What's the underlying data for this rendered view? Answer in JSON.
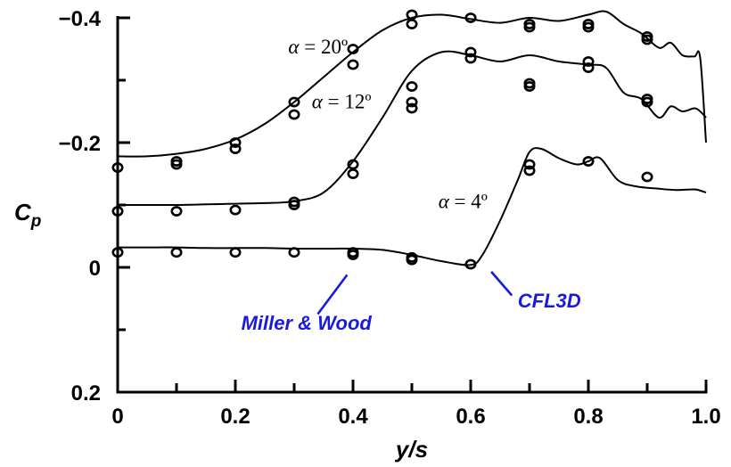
{
  "chart_data": {
    "type": "line",
    "title": "",
    "xlabel": "y/s",
    "ylabel_main": "C",
    "ylabel_sub": "p",
    "xlim": [
      0,
      1.0
    ],
    "ylim": [
      0.2,
      -0.4
    ],
    "y_inverted": true,
    "grid": false,
    "x_ticks": [
      0,
      0.1,
      0.2,
      0.3,
      0.4,
      0.5,
      0.6,
      0.7,
      0.8,
      0.9,
      1.0
    ],
    "x_tick_labels": [
      "0",
      "",
      "0.2",
      "",
      "0.4",
      "",
      "0.6",
      "",
      "0.8",
      "",
      "1.0"
    ],
    "y_ticks": [
      0.2,
      0.1,
      0.0,
      -0.1,
      -0.2,
      -0.3,
      -0.4
    ],
    "y_tick_labels": [
      "0.2",
      "",
      "0",
      "",
      "−0.2",
      "",
      "−0.4"
    ],
    "series": [
      {
        "label_greek": "α",
        "label_text": " = 20º",
        "label_at": [
          0.29,
          -0.343
        ],
        "computed": [
          [
            0,
            -0.178
          ],
          [
            0.05,
            -0.178
          ],
          [
            0.1,
            -0.182
          ],
          [
            0.15,
            -0.19
          ],
          [
            0.2,
            -0.205
          ],
          [
            0.25,
            -0.23
          ],
          [
            0.3,
            -0.265
          ],
          [
            0.35,
            -0.305
          ],
          [
            0.4,
            -0.345
          ],
          [
            0.45,
            -0.38
          ],
          [
            0.5,
            -0.4
          ],
          [
            0.55,
            -0.405
          ],
          [
            0.6,
            -0.398
          ],
          [
            0.65,
            -0.392
          ],
          [
            0.7,
            -0.4
          ],
          [
            0.75,
            -0.395
          ],
          [
            0.8,
            -0.405
          ],
          [
            0.83,
            -0.41
          ],
          [
            0.86,
            -0.39
          ],
          [
            0.89,
            -0.375
          ],
          [
            0.92,
            -0.352
          ],
          [
            0.94,
            -0.36
          ],
          [
            0.96,
            -0.34
          ],
          [
            0.98,
            -0.338
          ],
          [
            0.99,
            -0.336
          ],
          [
            1.0,
            -0.2
          ]
        ],
        "experiment": [
          [
            0,
            -0.16
          ],
          [
            0.1,
            -0.17
          ],
          [
            0.1,
            -0.165
          ],
          [
            0.2,
            -0.2
          ],
          [
            0.2,
            -0.19
          ],
          [
            0.3,
            -0.265
          ],
          [
            0.3,
            -0.245
          ],
          [
            0.4,
            -0.35
          ],
          [
            0.4,
            -0.325
          ],
          [
            0.5,
            -0.405
          ],
          [
            0.5,
            -0.39
          ],
          [
            0.6,
            -0.4
          ],
          [
            0.7,
            -0.39
          ],
          [
            0.7,
            -0.385
          ],
          [
            0.8,
            -0.39
          ],
          [
            0.8,
            -0.385
          ],
          [
            0.9,
            -0.37
          ],
          [
            0.9,
            -0.365
          ]
        ]
      },
      {
        "label_greek": "α",
        "label_text": " = 12º",
        "label_at": [
          0.33,
          -0.255
        ],
        "computed": [
          [
            0,
            -0.1
          ],
          [
            0.05,
            -0.1
          ],
          [
            0.1,
            -0.1
          ],
          [
            0.15,
            -0.101
          ],
          [
            0.2,
            -0.102
          ],
          [
            0.25,
            -0.103
          ],
          [
            0.3,
            -0.106
          ],
          [
            0.35,
            -0.12
          ],
          [
            0.4,
            -0.17
          ],
          [
            0.45,
            -0.24
          ],
          [
            0.5,
            -0.315
          ],
          [
            0.55,
            -0.345
          ],
          [
            0.6,
            -0.34
          ],
          [
            0.65,
            -0.33
          ],
          [
            0.7,
            -0.34
          ],
          [
            0.75,
            -0.33
          ],
          [
            0.8,
            -0.325
          ],
          [
            0.83,
            -0.32
          ],
          [
            0.86,
            -0.28
          ],
          [
            0.89,
            -0.27
          ],
          [
            0.92,
            -0.24
          ],
          [
            0.94,
            -0.258
          ],
          [
            0.96,
            -0.25
          ],
          [
            0.98,
            -0.255
          ],
          [
            0.99,
            -0.25
          ],
          [
            1.0,
            -0.24
          ]
        ],
        "experiment": [
          [
            0,
            -0.09
          ],
          [
            0.1,
            -0.09
          ],
          [
            0.2,
            -0.092
          ],
          [
            0.3,
            -0.105
          ],
          [
            0.3,
            -0.1
          ],
          [
            0.4,
            -0.165
          ],
          [
            0.4,
            -0.15
          ],
          [
            0.5,
            -0.29
          ],
          [
            0.5,
            -0.265
          ],
          [
            0.5,
            -0.255
          ],
          [
            0.6,
            -0.345
          ],
          [
            0.6,
            -0.335
          ],
          [
            0.7,
            -0.295
          ],
          [
            0.7,
            -0.29
          ],
          [
            0.8,
            -0.33
          ],
          [
            0.8,
            -0.32
          ],
          [
            0.9,
            -0.27
          ],
          [
            0.9,
            -0.265
          ]
        ]
      },
      {
        "label_greek": "α",
        "label_text": " = 4º",
        "label_at": [
          0.545,
          -0.095
        ],
        "computed": [
          [
            0,
            -0.032
          ],
          [
            0.05,
            -0.032
          ],
          [
            0.1,
            -0.032
          ],
          [
            0.15,
            -0.031
          ],
          [
            0.2,
            -0.031
          ],
          [
            0.25,
            -0.031
          ],
          [
            0.3,
            -0.03
          ],
          [
            0.35,
            -0.03
          ],
          [
            0.4,
            -0.03
          ],
          [
            0.45,
            -0.028
          ],
          [
            0.5,
            -0.02
          ],
          [
            0.55,
            -0.01
          ],
          [
            0.6,
            -0.004
          ],
          [
            0.62,
            -0.02
          ],
          [
            0.65,
            -0.075
          ],
          [
            0.68,
            -0.14
          ],
          [
            0.7,
            -0.185
          ],
          [
            0.72,
            -0.19
          ],
          [
            0.75,
            -0.175
          ],
          [
            0.78,
            -0.165
          ],
          [
            0.8,
            -0.17
          ],
          [
            0.82,
            -0.175
          ],
          [
            0.85,
            -0.14
          ],
          [
            0.88,
            -0.13
          ],
          [
            0.92,
            -0.126
          ],
          [
            0.95,
            -0.124
          ],
          [
            0.98,
            -0.125
          ],
          [
            0.99,
            -0.123
          ],
          [
            1.0,
            -0.12
          ]
        ],
        "experiment": [
          [
            0,
            -0.024
          ],
          [
            0.1,
            -0.024
          ],
          [
            0.2,
            -0.024
          ],
          [
            0.3,
            -0.024
          ],
          [
            0.4,
            -0.024
          ],
          [
            0.4,
            -0.02
          ],
          [
            0.5,
            -0.016
          ],
          [
            0.5,
            -0.012
          ],
          [
            0.6,
            -0.005
          ],
          [
            0.7,
            -0.165
          ],
          [
            0.7,
            -0.155
          ],
          [
            0.8,
            -0.17
          ],
          [
            0.9,
            -0.145
          ]
        ]
      }
    ],
    "annotations": [
      {
        "text": "Miller & Wood",
        "color": "#1a1adc",
        "at": [
          0.21,
          0.1
        ],
        "leader_from": [
          0.34,
          0.075
        ],
        "leader_to": [
          0.39,
          0.012
        ]
      },
      {
        "text": "CFL3D",
        "color": "#1a1adc",
        "at": [
          0.68,
          0.064
        ],
        "leader_from": [
          0.67,
          0.045
        ],
        "leader_to": [
          0.635,
          0.007
        ]
      }
    ]
  }
}
